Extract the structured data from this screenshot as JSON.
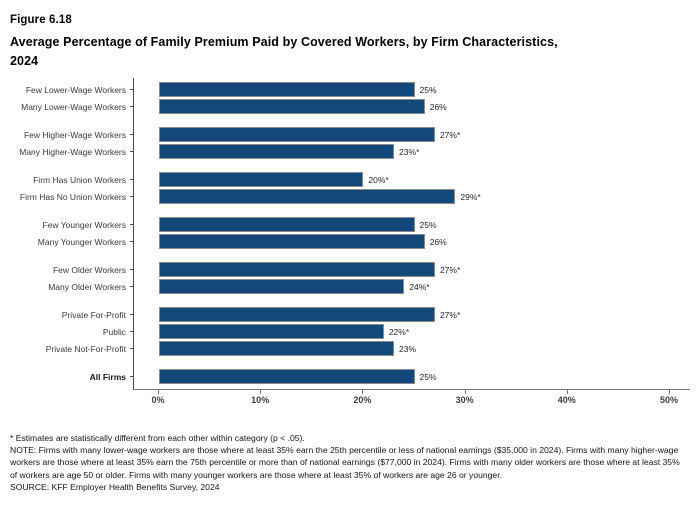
{
  "figure": {
    "number": "Figure 6.18",
    "title_lines": [
      "Average Percentage of Family Premium Paid by Covered Workers, by Firm Characteristics,",
      "2024"
    ]
  },
  "footnotes": {
    "asterisk": "* Estimates are statistically different from each other within category (p < .05).",
    "note": "NOTE: Firms with many lower-wage workers are those where at least 35% earn the 25th percentile or less of national earnings ($35,000 in 2024). Firms with many higher-wage workers are those where at least 35% earn the 75th percentile or more than of national earnings ($77,000 in 2024). Firms with many older workers are those where at least 35% of workers are age 50 or older. Firms with many younger workers are those where at least 35% of workers are age 26 or younger.",
    "source": "SOURCE: KFF Employer Health Benefits Survey, 2024"
  },
  "chart_data": {
    "type": "bar",
    "orientation": "horizontal",
    "title": "Average Percentage of Family Premium Paid by Covered Workers, by Firm Characteristics, 2024",
    "xlabel": "",
    "ylabel": "",
    "xlim": [
      0,
      50
    ],
    "x_tick_values": [
      0,
      10,
      20,
      30,
      40,
      50
    ],
    "x_tick_labels": [
      "0%",
      "10%",
      "20%",
      "30%",
      "40%",
      "50%"
    ],
    "grid": false,
    "legend": false,
    "bar_color": "#12497a",
    "bar_border_color": "#8a8a8a",
    "groups": [
      {
        "bars": [
          {
            "label": "Few Lower-Wage Workers",
            "value": 25,
            "text": "25%"
          },
          {
            "label": "Many Lower-Wage Workers",
            "value": 26,
            "text": "26%"
          }
        ]
      },
      {
        "bars": [
          {
            "label": "Few Higher-Wage Workers",
            "value": 27,
            "text": "27%*"
          },
          {
            "label": "Many Higher-Wage Workers",
            "value": 23,
            "text": "23%*"
          }
        ]
      },
      {
        "bars": [
          {
            "label": "Firm Has Union Workers",
            "value": 20,
            "text": "20%*"
          },
          {
            "label": "Firm Has No Union Workers",
            "value": 29,
            "text": "29%*"
          }
        ]
      },
      {
        "bars": [
          {
            "label": "Few Younger Workers",
            "value": 25,
            "text": "25%"
          },
          {
            "label": "Many Younger Workers",
            "value": 26,
            "text": "26%"
          }
        ]
      },
      {
        "bars": [
          {
            "label": "Few Older Workers",
            "value": 27,
            "text": "27%*"
          },
          {
            "label": "Many Older Workers",
            "value": 24,
            "text": "24%*"
          }
        ]
      },
      {
        "bars": [
          {
            "label": "Private For-Profit",
            "value": 27,
            "text": "27%*"
          },
          {
            "label": "Public",
            "value": 22,
            "text": "22%*"
          },
          {
            "label": "Private Not-For-Profit",
            "value": 23,
            "text": "23%"
          }
        ]
      },
      {
        "bars": [
          {
            "label": "All Firms",
            "value": 25,
            "text": "25%",
            "bold": true
          }
        ]
      }
    ]
  }
}
